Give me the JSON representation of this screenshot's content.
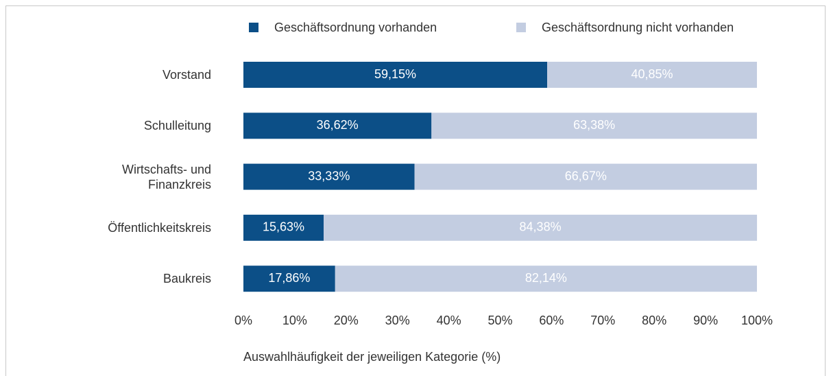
{
  "chart_data": {
    "type": "stacked-bar-horizontal",
    "categories": [
      "Vorstand",
      "Schulleitung",
      "Wirtschafts- und Finanzkreis",
      "Öffentlichkeitskreis",
      "Baukreis"
    ],
    "series": [
      {
        "name": "Geschäftsordnung vorhanden",
        "color": "#0c4f87",
        "label_color": "#ffffff",
        "values": [
          59.15,
          36.62,
          33.33,
          15.63,
          17.86
        ],
        "value_labels": [
          "59,15%",
          "36,62%",
          "33,33%",
          "15,63%",
          "17,86%"
        ]
      },
      {
        "name": "Geschäftsordnung nicht vorhanden",
        "color": "#c3cde1",
        "label_color": "#ffffff",
        "values": [
          40.85,
          63.38,
          66.67,
          84.38,
          82.14
        ],
        "value_labels": [
          "40,85%",
          "63,38%",
          "66,67%",
          "84,38%",
          "82,14%"
        ]
      }
    ],
    "xlim": [
      0,
      100
    ],
    "xticks": [
      {
        "value": 0,
        "label": "0%"
      },
      {
        "value": 10,
        "label": "10%"
      },
      {
        "value": 20,
        "label": "20%"
      },
      {
        "value": 30,
        "label": "30%"
      },
      {
        "value": 40,
        "label": "40%"
      },
      {
        "value": 50,
        "label": "50%"
      },
      {
        "value": 60,
        "label": "60%"
      },
      {
        "value": 70,
        "label": "70%"
      },
      {
        "value": 80,
        "label": "80%"
      },
      {
        "value": 90,
        "label": "90%"
      },
      {
        "value": 100,
        "label": "100%"
      }
    ],
    "xlabel": "Auswahlhäufigkeit der jeweiligen Kategorie (%)",
    "legend": "top"
  }
}
